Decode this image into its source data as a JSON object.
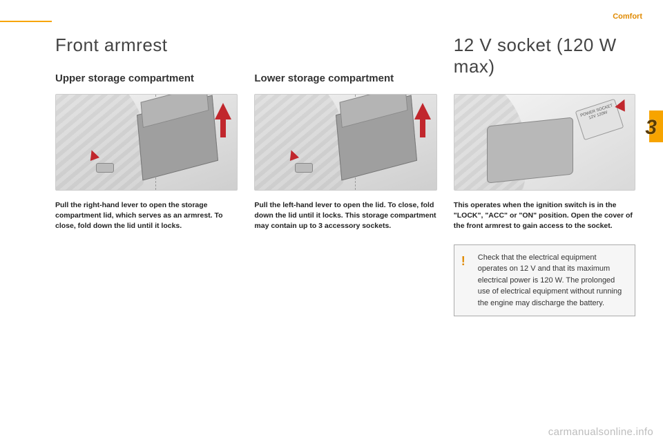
{
  "page": {
    "section_label": "Comfort",
    "chapter_number": "3",
    "watermark": "carmanualsonline.info",
    "page_number": ""
  },
  "colors": {
    "accent": "#f7a400",
    "arrow": "#c1272d",
    "text": "#333333",
    "bg": "#ffffff",
    "box_bg": "#f6f6f6",
    "box_border": "#aaaaaa"
  },
  "left": {
    "title": "Front armrest",
    "upper": {
      "heading": "Upper storage compartment",
      "body": "Pull the right-hand lever to open the storage compartment lid, which serves as an armrest. To close, fold down the lid until it locks."
    },
    "lower": {
      "heading": "Lower storage compartment",
      "body": "Pull the left-hand lever to open the lid. To close, fold down the lid until it locks. This storage compartment may contain up to 3 accessory sockets."
    }
  },
  "right": {
    "title": "12 V socket (120 W max)",
    "socket_label": "POWER SOCKET 12V 120W",
    "body": "This operates when the ignition switch is in the \"LOCK\", \"ACC\" or \"ON\" position. Open the cover of the front armrest to gain access to the socket.",
    "caution_mark": "!",
    "caution": "Check that the electrical equipment operates on 12 V and that its maximum electrical power is 120 W. The prolonged use of electrical equipment without running the engine may discharge the battery."
  }
}
